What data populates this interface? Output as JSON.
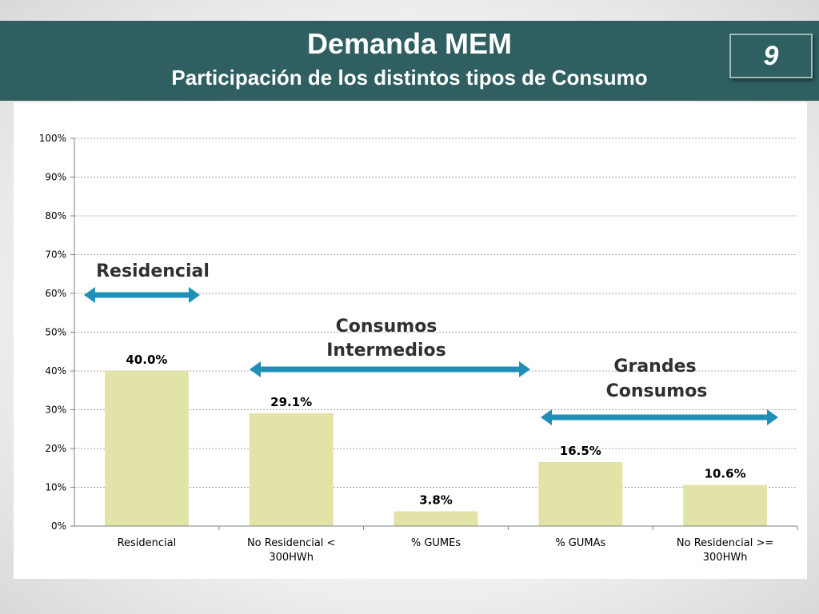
{
  "header": {
    "title": "Demanda MEM",
    "subtitle": "Participación de los distintos tipos de Consumo",
    "slide_number": "9"
  },
  "annotations": {
    "residencial": "Residencial",
    "intermedios_line1": "Consumos",
    "intermedios_line2": "Intermedios",
    "grandes_line1": "Grandes",
    "grandes_line2": "Consumos"
  },
  "colors": {
    "header_bg": "#2f5f60",
    "bar": "#e2e3a6",
    "arrow": "#1f8fb8"
  },
  "chart_data": {
    "type": "bar",
    "categories": [
      [
        "Residencial"
      ],
      [
        "No Residencial <",
        "300HWh"
      ],
      [
        "% GUMEs"
      ],
      [
        "% GUMAs"
      ],
      [
        "No Residencial >=",
        "300HWh"
      ]
    ],
    "values": [
      40.0,
      29.1,
      3.8,
      16.5,
      10.6
    ],
    "data_labels": [
      "40.0%",
      "29.1%",
      "3.8%",
      "16.5%",
      "10.6%"
    ],
    "yticks": [
      "0%",
      "10%",
      "20%",
      "30%",
      "40%",
      "50%",
      "60%",
      "70%",
      "80%",
      "90%",
      "100%"
    ],
    "ylim": [
      0,
      100
    ],
    "grid": true,
    "legend": "none"
  }
}
